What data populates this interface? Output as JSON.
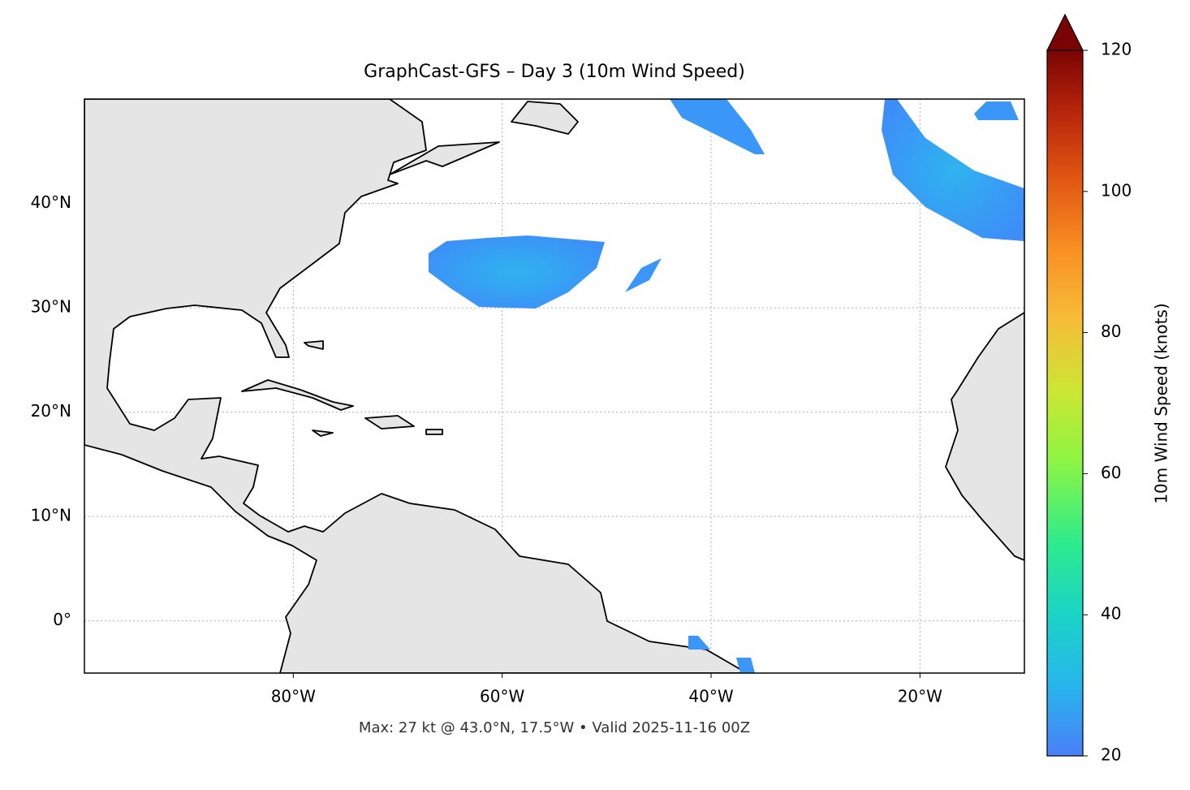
{
  "chart_data": {
    "type": "map",
    "title": "GraphCast-GFS – Day 3 (10m Wind Speed)",
    "footnote": "Max: 27 kt @ 43.0°N, 17.5°W • Valid 2025-11-16 00Z",
    "xlim": [
      -100,
      -10
    ],
    "ylim": [
      -5,
      50
    ],
    "xticks": [
      {
        "value": -80,
        "label": "80°W"
      },
      {
        "value": -60,
        "label": "60°W"
      },
      {
        "value": -40,
        "label": "40°W"
      },
      {
        "value": -20,
        "label": "20°W"
      }
    ],
    "yticks": [
      {
        "value": 0,
        "label": "0°"
      },
      {
        "value": 10,
        "label": "10°N"
      },
      {
        "value": 20,
        "label": "20°N"
      },
      {
        "value": 30,
        "label": "30°N"
      },
      {
        "value": 40,
        "label": "40°N"
      }
    ],
    "grid": true,
    "colorbar": {
      "label": "10m Wind Speed (knots)",
      "lim": [
        20,
        120
      ],
      "ticks": [
        20,
        40,
        60,
        80,
        100,
        120
      ],
      "extend": "max"
    }
  }
}
